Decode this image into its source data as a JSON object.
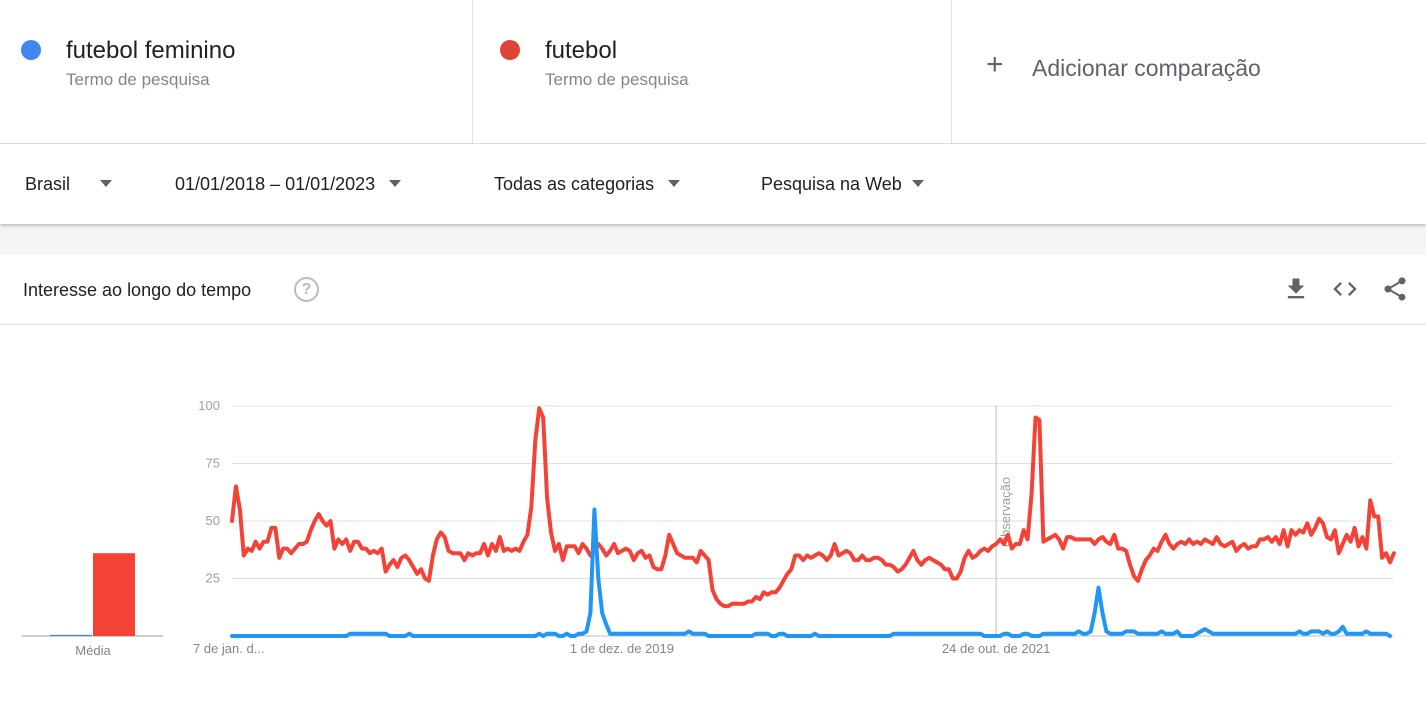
{
  "terms": [
    {
      "name": "futebol feminino",
      "subtitle": "Termo de pesquisa",
      "color": "#4285f4"
    },
    {
      "name": "futebol",
      "subtitle": "Termo de pesquisa",
      "color": "#db4437"
    }
  ],
  "add_comparison": {
    "icon": "plus-icon",
    "label": "Adicionar comparação"
  },
  "filters": {
    "region": "Brasil",
    "date_range": "01/01/2018 – 01/01/2023",
    "category": "Todas as categorias",
    "search_type": "Pesquisa na Web"
  },
  "card": {
    "title": "Interesse ao longo do tempo",
    "help_icon": "question-circle-icon",
    "tools": [
      "download-icon",
      "embed-code-icon",
      "share-icon"
    ]
  },
  "chart_data": {
    "type": "line",
    "y_ticks": [
      "100",
      "75",
      "50",
      "25"
    ],
    "ylim": [
      0,
      100
    ],
    "grid": true,
    "x_tick_labels": [
      {
        "label": "7 de jan. d...",
        "index": 0
      },
      {
        "label": "1 de dez. de 2019",
        "index": 99
      },
      {
        "label": "24 de out. de 2021",
        "index": 194
      }
    ],
    "note": {
      "label": "Observação",
      "index": 194
    },
    "average": {
      "label": "Média",
      "values": [
        {
          "series": "futebol feminino",
          "value": 0.5,
          "color": "#4285f4"
        },
        {
          "series": "futebol",
          "value": 36,
          "color": "#f44336"
        }
      ]
    },
    "series": [
      {
        "name": "futebol feminino",
        "color": "#2196f3",
        "values": [
          0,
          0,
          0,
          0,
          0,
          0,
          0,
          0,
          0,
          0,
          0,
          0,
          0,
          0,
          0,
          0,
          0,
          0,
          0,
          0,
          0,
          0,
          0,
          0,
          0,
          0,
          0,
          0,
          0,
          0,
          1,
          1,
          1,
          1,
          1,
          1,
          1,
          1,
          1,
          1,
          0,
          0,
          0,
          0,
          0,
          1,
          0,
          0,
          0,
          0,
          0,
          0,
          0,
          0,
          0,
          0,
          0,
          0,
          0,
          0,
          0,
          0,
          0,
          0,
          0,
          0,
          0,
          0,
          0,
          0,
          0,
          0,
          0,
          0,
          0,
          0,
          0,
          0,
          1,
          0,
          1,
          1,
          1,
          0,
          0,
          1,
          0,
          0,
          1,
          1,
          2,
          10,
          55,
          25,
          10,
          5,
          1,
          1,
          1,
          1,
          1,
          1,
          1,
          1,
          1,
          1,
          1,
          1,
          1,
          1,
          1,
          1,
          1,
          1,
          1,
          1,
          2,
          1,
          1,
          1,
          1,
          0,
          0,
          0,
          0,
          0,
          0,
          0,
          0,
          0,
          0,
          0,
          0,
          1,
          1,
          1,
          1,
          0,
          0,
          1,
          1,
          0,
          0,
          0,
          0,
          0,
          0,
          0,
          1,
          0,
          0,
          0,
          0,
          0,
          0,
          0,
          0,
          0,
          0,
          0,
          0,
          0,
          0,
          0,
          0,
          0,
          0,
          0,
          1,
          1,
          1,
          1,
          1,
          1,
          1,
          1,
          1,
          1,
          1,
          1,
          1,
          1,
          1,
          1,
          1,
          1,
          1,
          1,
          1,
          1,
          1,
          0,
          0,
          0,
          0,
          0,
          1,
          1,
          0,
          0,
          0,
          1,
          1,
          0,
          0,
          0,
          1,
          1,
          1,
          1,
          1,
          1,
          1,
          1,
          1,
          2,
          1,
          1,
          2,
          10,
          21,
          10,
          2,
          1,
          1,
          1,
          1,
          2,
          2,
          2,
          1,
          1,
          1,
          1,
          1,
          1,
          2,
          1,
          1,
          1,
          2,
          0,
          0,
          0,
          0,
          1,
          2,
          3,
          2,
          1,
          1,
          1,
          1,
          1,
          1,
          1,
          1,
          1,
          1,
          1,
          1,
          1,
          1,
          1,
          1,
          1,
          1,
          1,
          1,
          1,
          1,
          2,
          1,
          1,
          2,
          2,
          2,
          1,
          2,
          1,
          1,
          2,
          4,
          1,
          1,
          1,
          1,
          1,
          2,
          1,
          1,
          1,
          1,
          1,
          0
        ]
      },
      {
        "name": "futebol",
        "color": "#f44336",
        "values": [
          50,
          65,
          55,
          35,
          38,
          37,
          41,
          38,
          41,
          41,
          47,
          47,
          34,
          38,
          38,
          36,
          38,
          40,
          40,
          41,
          46,
          50,
          53,
          50,
          48,
          50,
          38,
          42,
          40,
          42,
          37,
          41,
          41,
          38,
          38,
          36,
          37,
          36,
          38,
          28,
          31,
          33,
          30,
          34,
          35,
          33,
          30,
          27,
          29,
          25,
          24,
          35,
          42,
          45,
          43,
          37,
          36,
          36,
          36,
          33,
          36,
          35,
          36,
          36,
          40,
          35,
          40,
          37,
          43,
          37,
          38,
          37,
          38,
          37,
          41,
          44,
          56,
          85,
          99,
          95,
          60,
          45,
          37,
          40,
          33,
          39,
          39,
          39,
          36,
          40,
          38,
          35,
          37,
          40,
          38,
          35,
          37,
          40,
          36,
          37,
          38,
          37,
          33,
          36,
          37,
          34,
          35,
          30,
          29,
          29,
          35,
          44,
          40,
          36,
          35,
          34,
          34,
          34,
          32,
          37,
          35,
          33,
          20,
          16,
          14,
          13,
          13,
          14,
          14,
          14,
          14,
          15,
          15,
          17,
          16,
          19,
          18,
          19,
          19,
          21,
          24,
          27,
          29,
          35,
          35,
          33,
          35,
          34,
          35,
          36,
          35,
          33,
          35,
          40,
          35,
          36,
          37,
          36,
          33,
          33,
          35,
          33,
          33,
          34,
          34,
          33,
          31,
          31,
          30,
          28,
          29,
          31,
          34,
          37,
          33,
          31,
          33,
          34,
          33,
          32,
          31,
          29,
          29,
          25,
          25,
          28,
          34,
          37,
          34,
          35,
          37,
          38,
          37,
          39,
          40,
          42,
          40,
          44,
          38,
          40,
          40,
          46,
          42,
          62,
          95,
          94,
          41,
          42,
          43,
          44,
          42,
          38,
          43,
          43,
          42,
          42,
          42,
          42,
          42,
          40,
          42,
          43,
          41,
          40,
          44,
          38,
          38,
          37,
          31,
          26,
          24,
          29,
          33,
          35,
          38,
          37,
          41,
          44,
          40,
          38,
          40,
          41,
          40,
          42,
          40,
          41,
          40,
          42,
          41,
          40,
          43,
          40,
          39,
          40,
          41,
          37,
          39,
          40,
          38,
          39,
          39,
          42,
          42,
          43,
          41,
          43,
          40,
          46,
          39,
          46,
          44,
          46,
          45,
          49,
          44,
          47,
          51,
          49,
          43,
          42,
          46,
          36,
          40,
          44,
          41,
          47,
          39,
          43,
          38,
          59,
          52,
          52,
          34,
          36,
          32,
          36
        ]
      }
    ]
  }
}
